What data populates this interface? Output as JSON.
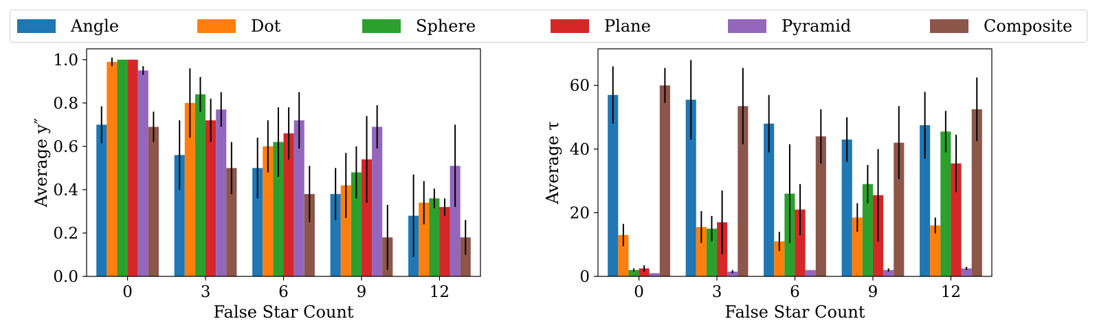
{
  "legend": [
    {
      "name": "Angle",
      "color": "#1f77b4"
    },
    {
      "name": "Dot",
      "color": "#ff7f0e"
    },
    {
      "name": "Sphere",
      "color": "#2ca02c"
    },
    {
      "name": "Plane",
      "color": "#d62728"
    },
    {
      "name": "Pyramid",
      "color": "#9467bd"
    },
    {
      "name": "Composite",
      "color": "#8c564b"
    }
  ],
  "chart_data": [
    {
      "type": "bar",
      "xlabel": "False Star Count",
      "ylabel": "Average y″",
      "categories": [
        "0",
        "3",
        "6",
        "9",
        "12"
      ],
      "ylim": [
        0,
        1.05
      ],
      "yticks": [
        0.0,
        0.2,
        0.4,
        0.6,
        0.8,
        1.0
      ],
      "ytick_labels": [
        "0.0",
        "0.2",
        "0.4",
        "0.6",
        "0.8",
        "1.0"
      ],
      "grid": false,
      "legend_position": "top",
      "series": [
        {
          "name": "Angle",
          "values": [
            0.7,
            0.56,
            0.5,
            0.38,
            0.28
          ],
          "errors": [
            0.085,
            0.16,
            0.14,
            0.12,
            0.19
          ]
        },
        {
          "name": "Dot",
          "values": [
            0.99,
            0.8,
            0.6,
            0.42,
            0.34
          ],
          "errors": [
            0.02,
            0.16,
            0.12,
            0.15,
            0.1
          ]
        },
        {
          "name": "Sphere",
          "values": [
            1.0,
            0.84,
            0.62,
            0.48,
            0.36
          ],
          "errors": [
            0.0,
            0.08,
            0.16,
            0.12,
            0.045
          ]
        },
        {
          "name": "Plane",
          "values": [
            1.0,
            0.72,
            0.66,
            0.54,
            0.32
          ],
          "errors": [
            0.0,
            0.1,
            0.12,
            0.2,
            0.04
          ]
        },
        {
          "name": "Pyramid",
          "values": [
            0.95,
            0.77,
            0.72,
            0.69,
            0.51
          ],
          "errors": [
            0.02,
            0.08,
            0.13,
            0.1,
            0.19
          ]
        },
        {
          "name": "Composite",
          "values": [
            0.69,
            0.5,
            0.38,
            0.18,
            0.18
          ],
          "errors": [
            0.07,
            0.12,
            0.13,
            0.15,
            0.08
          ]
        }
      ]
    },
    {
      "type": "bar",
      "xlabel": "False Star Count",
      "ylabel": "Average τ",
      "categories": [
        "0",
        "3",
        "6",
        "9",
        "12"
      ],
      "ylim": [
        0,
        71.5
      ],
      "yticks": [
        0,
        20,
        40,
        60
      ],
      "ytick_labels": [
        "0",
        "20",
        "40",
        "60"
      ],
      "grid": false,
      "legend_position": "top",
      "series": [
        {
          "name": "Angle",
          "values": [
            57,
            55.5,
            48,
            43,
            47.5
          ],
          "errors": [
            9,
            12.5,
            9,
            7,
            10.5
          ]
        },
        {
          "name": "Dot",
          "values": [
            13,
            15.5,
            11,
            18.5,
            16
          ],
          "errors": [
            3.5,
            5,
            3,
            4.5,
            2.5
          ]
        },
        {
          "name": "Sphere",
          "values": [
            2,
            15,
            26,
            29,
            45.5
          ],
          "errors": [
            0.5,
            4,
            15.5,
            6,
            6.5
          ]
        },
        {
          "name": "Plane",
          "values": [
            2.5,
            17,
            21,
            25.5,
            35.5
          ],
          "errors": [
            1,
            10,
            8,
            14.5,
            9
          ]
        },
        {
          "name": "Pyramid",
          "values": [
            1,
            1.5,
            2,
            2,
            2.5
          ],
          "errors": [
            0,
            0.5,
            0,
            0.5,
            0.5
          ]
        },
        {
          "name": "Composite",
          "values": [
            60,
            53.5,
            44,
            42,
            52.5
          ],
          "errors": [
            5.5,
            12,
            8.5,
            11.5,
            10
          ]
        }
      ]
    }
  ]
}
